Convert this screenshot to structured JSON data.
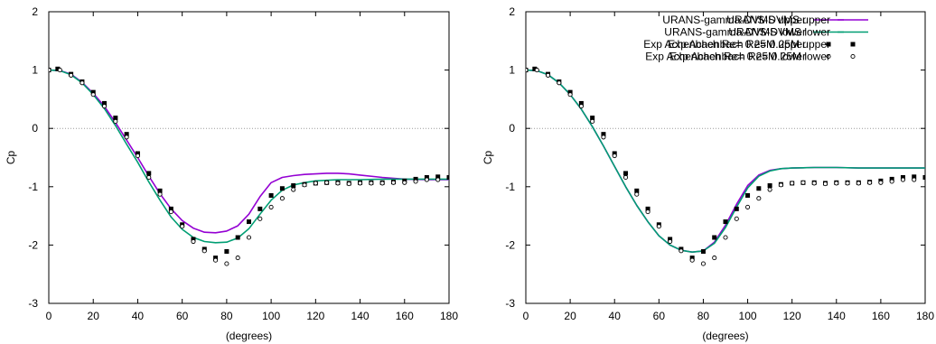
{
  "chart_data": [
    {
      "type": "line",
      "title": "",
      "xlabel": "(degrees)",
      "ylabel": "Cp",
      "xlim": [
        0,
        180
      ],
      "ylim": [
        -3,
        2
      ],
      "xticks": [
        0,
        20,
        40,
        60,
        80,
        100,
        120,
        140,
        160,
        180
      ],
      "yticks": [
        -3,
        -2,
        -1,
        0,
        1,
        2
      ],
      "zero_line": true,
      "legend_position": "top-right",
      "series": [
        {
          "name": "URANS-gamma-DVMS upper",
          "kind": "line",
          "color": "#9400d3",
          "x": [
            0,
            5,
            10,
            15,
            20,
            25,
            30,
            35,
            40,
            45,
            50,
            55,
            60,
            65,
            70,
            75,
            80,
            85,
            90,
            95,
            100,
            105,
            110,
            115,
            120,
            125,
            130,
            135,
            140,
            150,
            160,
            170,
            180
          ],
          "y": [
            1.0,
            0.99,
            0.93,
            0.79,
            0.6,
            0.38,
            0.1,
            -0.2,
            -0.5,
            -0.82,
            -1.12,
            -1.38,
            -1.58,
            -1.71,
            -1.78,
            -1.79,
            -1.76,
            -1.67,
            -1.47,
            -1.17,
            -0.93,
            -0.84,
            -0.81,
            -0.79,
            -0.78,
            -0.77,
            -0.77,
            -0.78,
            -0.8,
            -0.84,
            -0.87,
            -0.88,
            -0.88
          ]
        },
        {
          "name": "URANS-gamma-DVMS lower",
          "kind": "line",
          "color": "#009e73",
          "x": [
            0,
            5,
            10,
            15,
            20,
            25,
            30,
            35,
            40,
            45,
            50,
            55,
            60,
            65,
            70,
            75,
            80,
            85,
            90,
            95,
            100,
            105,
            110,
            115,
            120,
            125,
            130,
            140,
            150,
            160,
            170,
            180
          ],
          "y": [
            1.0,
            0.99,
            0.92,
            0.78,
            0.58,
            0.34,
            0.05,
            -0.27,
            -0.58,
            -0.92,
            -1.23,
            -1.52,
            -1.73,
            -1.87,
            -1.94,
            -1.96,
            -1.95,
            -1.88,
            -1.72,
            -1.47,
            -1.23,
            -1.06,
            -0.97,
            -0.93,
            -0.9,
            -0.89,
            -0.88,
            -0.88,
            -0.87,
            -0.87,
            -0.87,
            -0.87
          ]
        },
        {
          "name": "Exp Achenbach Re= 0.25M upper",
          "kind": "points",
          "marker": "filled-square",
          "color": "#000000",
          "x": [
            0,
            4,
            10,
            15,
            20,
            25,
            30,
            35,
            40,
            45,
            50,
            55,
            60,
            65,
            70,
            75,
            80,
            85,
            90,
            95,
            100,
            105,
            110,
            115,
            120,
            125,
            130,
            135,
            140,
            145,
            150,
            155,
            160,
            165,
            170,
            175,
            180
          ],
          "y": [
            1.0,
            1.02,
            0.93,
            0.8,
            0.62,
            0.43,
            0.18,
            -0.1,
            -0.43,
            -0.77,
            -1.07,
            -1.38,
            -1.65,
            -1.9,
            -2.07,
            -2.22,
            -2.11,
            -1.87,
            -1.6,
            -1.38,
            -1.15,
            -1.03,
            -0.98,
            -0.96,
            -0.94,
            -0.93,
            -0.93,
            -0.94,
            -0.93,
            -0.93,
            -0.93,
            -0.92,
            -0.9,
            -0.87,
            -0.84,
            -0.83,
            -0.84
          ]
        },
        {
          "name": "Exp Achenbach Re= 0.25M lower",
          "kind": "points",
          "marker": "open-circle",
          "color": "#000000",
          "x": [
            0,
            5,
            10,
            15,
            20,
            25,
            30,
            35,
            40,
            45,
            50,
            55,
            60,
            65,
            70,
            75,
            80,
            85,
            90,
            95,
            100,
            105,
            110,
            115,
            120,
            125,
            130,
            135,
            140,
            145,
            150,
            155,
            160,
            165,
            170,
            175
          ],
          "y": [
            1.0,
            1.0,
            0.91,
            0.78,
            0.58,
            0.38,
            0.12,
            -0.15,
            -0.47,
            -0.84,
            -1.13,
            -1.43,
            -1.68,
            -1.94,
            -2.1,
            -2.26,
            -2.32,
            -2.22,
            -1.87,
            -1.55,
            -1.35,
            -1.2,
            -1.05,
            -0.97,
            -0.94,
            -0.93,
            -0.94,
            -0.95,
            -0.94,
            -0.94,
            -0.94,
            -0.93,
            -0.93,
            -0.91,
            -0.88,
            -0.88
          ]
        }
      ]
    },
    {
      "type": "line",
      "title": "",
      "xlabel": "(degrees)",
      "ylabel": "Cp",
      "xlim": [
        0,
        180
      ],
      "ylim": [
        -3,
        2
      ],
      "xticks": [
        0,
        20,
        40,
        60,
        80,
        100,
        120,
        140,
        160,
        180
      ],
      "yticks": [
        -3,
        -2,
        -1,
        0,
        1,
        2
      ],
      "zero_line": true,
      "legend_position": "top-right",
      "series": [
        {
          "name": "URANS-DVMS upper",
          "kind": "line",
          "color": "#9400d3",
          "x": [
            0,
            5,
            10,
            15,
            20,
            25,
            30,
            35,
            40,
            45,
            50,
            55,
            60,
            65,
            70,
            75,
            80,
            85,
            90,
            95,
            100,
            105,
            110,
            115,
            120,
            130,
            140,
            150,
            160,
            170,
            180
          ],
          "y": [
            1.0,
            0.99,
            0.92,
            0.78,
            0.58,
            0.33,
            0.03,
            -0.3,
            -0.65,
            -1.0,
            -1.32,
            -1.6,
            -1.84,
            -2.0,
            -2.09,
            -2.12,
            -2.1,
            -1.95,
            -1.66,
            -1.3,
            -0.98,
            -0.8,
            -0.72,
            -0.69,
            -0.68,
            -0.67,
            -0.67,
            -0.68,
            -0.68,
            -0.68,
            -0.68
          ]
        },
        {
          "name": "URANS-DVMS lower",
          "kind": "line",
          "color": "#009e73",
          "x": [
            0,
            5,
            10,
            15,
            20,
            25,
            30,
            35,
            40,
            45,
            50,
            55,
            60,
            65,
            70,
            75,
            80,
            85,
            90,
            95,
            100,
            105,
            110,
            115,
            120,
            130,
            140,
            150,
            160,
            170,
            180
          ],
          "y": [
            1.0,
            0.99,
            0.92,
            0.78,
            0.58,
            0.33,
            0.03,
            -0.3,
            -0.65,
            -1.0,
            -1.32,
            -1.6,
            -1.84,
            -2.0,
            -2.09,
            -2.12,
            -2.1,
            -1.97,
            -1.7,
            -1.35,
            -1.02,
            -0.82,
            -0.73,
            -0.69,
            -0.68,
            -0.67,
            -0.67,
            -0.68,
            -0.68,
            -0.68,
            -0.68
          ]
        },
        {
          "name": "Exp Achenbach Re= 0.25M upper",
          "kind": "points",
          "marker": "filled-square",
          "color": "#000000",
          "x": [
            0,
            4,
            10,
            15,
            20,
            25,
            30,
            35,
            40,
            45,
            50,
            55,
            60,
            65,
            70,
            75,
            80,
            85,
            90,
            95,
            100,
            105,
            110,
            115,
            120,
            125,
            130,
            135,
            140,
            145,
            150,
            155,
            160,
            165,
            170,
            175,
            180
          ],
          "y": [
            1.0,
            1.02,
            0.93,
            0.8,
            0.62,
            0.43,
            0.18,
            -0.1,
            -0.43,
            -0.77,
            -1.07,
            -1.38,
            -1.65,
            -1.9,
            -2.07,
            -2.22,
            -2.11,
            -1.87,
            -1.6,
            -1.38,
            -1.15,
            -1.03,
            -0.98,
            -0.96,
            -0.94,
            -0.93,
            -0.93,
            -0.94,
            -0.93,
            -0.93,
            -0.93,
            -0.92,
            -0.9,
            -0.87,
            -0.84,
            -0.83,
            -0.84
          ]
        },
        {
          "name": "Exp Achenbach Re= 0.25M lower",
          "kind": "points",
          "marker": "open-circle",
          "color": "#000000",
          "x": [
            0,
            5,
            10,
            15,
            20,
            25,
            30,
            35,
            40,
            45,
            50,
            55,
            60,
            65,
            70,
            75,
            80,
            85,
            90,
            95,
            100,
            105,
            110,
            115,
            120,
            125,
            130,
            135,
            140,
            145,
            150,
            155,
            160,
            165,
            170,
            175
          ],
          "y": [
            1.0,
            1.0,
            0.91,
            0.78,
            0.58,
            0.38,
            0.12,
            -0.15,
            -0.47,
            -0.84,
            -1.13,
            -1.43,
            -1.68,
            -1.94,
            -2.1,
            -2.26,
            -2.32,
            -2.22,
            -1.87,
            -1.55,
            -1.35,
            -1.2,
            -1.05,
            -0.97,
            -0.94,
            -0.93,
            -0.94,
            -0.95,
            -0.94,
            -0.94,
            -0.94,
            -0.93,
            -0.93,
            -0.91,
            -0.88,
            -0.88
          ]
        }
      ]
    }
  ]
}
